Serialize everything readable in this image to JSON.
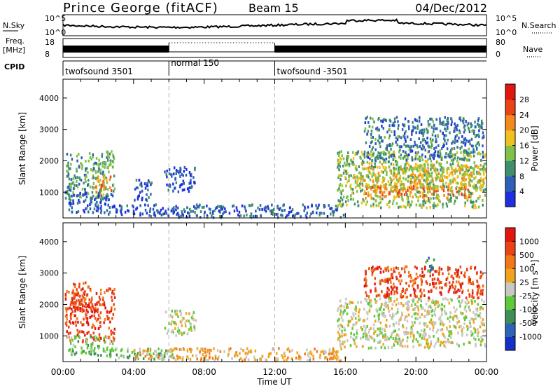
{
  "header": {
    "station": "Prince George (fitACF)",
    "beam": "Beam 15",
    "date": "04/Dec/2012"
  },
  "noise_panel": {
    "left_label": "N.Sky",
    "right_label": "N.Search",
    "left_ticks": [
      "10^5",
      "10^0"
    ],
    "right_ticks": [
      "10^5",
      "10^0"
    ]
  },
  "freq_panel": {
    "left_label_line1": "Freq.",
    "left_label_line2": "[MHz]",
    "right_label": "Nave",
    "left_ticks": [
      "18",
      "8"
    ],
    "right_ticks": [
      "80",
      "0"
    ]
  },
  "cpid": {
    "label": "CPID",
    "segments": [
      {
        "name": "twofsound 3501",
        "start_hour": 0,
        "end_hour": 6
      },
      {
        "name": "normal 150",
        "start_hour": 6,
        "end_hour": 12
      },
      {
        "name": "twofsound -3501",
        "start_hour": 12,
        "end_hour": 24
      }
    ]
  },
  "chart_data": [
    {
      "type": "heatmap",
      "parameter": "Power",
      "ylabel": "Slant Range [km]",
      "ylim": [
        180,
        4600
      ],
      "yticks": [
        "1000",
        "2000",
        "3000",
        "4000"
      ],
      "xlim": [
        0,
        24
      ],
      "colorbar_label": "Power [dB]",
      "colorbar_ticks": [
        "4",
        "8",
        "12",
        "16",
        "20",
        "24",
        "28"
      ],
      "colorbar_range": [
        0,
        32
      ],
      "colorbar_colors": [
        "#1f2fe0",
        "#2e5fb8",
        "#3f8f6e",
        "#7fc14a",
        "#f0c020",
        "#f28a1e",
        "#ea4316",
        "#e0160f"
      ],
      "regions": [
        {
          "t": [
            0.1,
            2.9
          ],
          "r": [
            800,
            2300
          ],
          "level": 11
        },
        {
          "t": [
            0.2,
            2.8
          ],
          "r": [
            350,
            1000
          ],
          "level": 5
        },
        {
          "t": [
            1.8,
            2.7
          ],
          "r": [
            900,
            1500
          ],
          "level": 22
        },
        {
          "t": [
            2.5,
            6.2
          ],
          "r": [
            250,
            600
          ],
          "level": 4
        },
        {
          "t": [
            4.0,
            5.0
          ],
          "r": [
            700,
            1400
          ],
          "level": 6
        },
        {
          "t": [
            5.7,
            7.5
          ],
          "r": [
            1000,
            1800
          ],
          "level": 4
        },
        {
          "t": [
            6.0,
            16.0
          ],
          "r": [
            190,
            600
          ],
          "level": 6
        },
        {
          "t": [
            15.5,
            23.9
          ],
          "r": [
            500,
            2300
          ],
          "level": 14
        },
        {
          "t": [
            17.0,
            23.0
          ],
          "r": [
            800,
            1200
          ],
          "level": 23
        },
        {
          "t": [
            17.0,
            23.8
          ],
          "r": [
            2000,
            3400
          ],
          "level": 8
        },
        {
          "t": [
            16.5,
            23.8
          ],
          "r": [
            1100,
            1900
          ],
          "level": 18
        }
      ]
    },
    {
      "type": "heatmap",
      "parameter": "Velocity",
      "ylabel": "Slant Range [km]",
      "ylim": [
        180,
        4600
      ],
      "yticks": [
        "1000",
        "2000",
        "3000",
        "4000"
      ],
      "xlim": [
        0,
        24
      ],
      "xticks": [
        "00:00",
        "04:00",
        "08:00",
        "12:00",
        "16:00",
        "20:00",
        "00:00"
      ],
      "xlabel": "Time UT",
      "colorbar_label": "Velocity [m s⁻¹]",
      "colorbar_ticks": [
        "1000",
        "500",
        "100",
        "25",
        "-25",
        "-100",
        "-500",
        "-1000"
      ],
      "colorbar_colors": [
        "#1530c8",
        "#2e63b5",
        "#3e8f55",
        "#5ec93a",
        "#c8c8c0",
        "#f0a41e",
        "#f07818",
        "#ea4316",
        "#e0160f"
      ],
      "regions": [
        {
          "t": [
            0.1,
            2.9
          ],
          "r": [
            800,
            2500
          ],
          "level": 7
        },
        {
          "t": [
            0.2,
            2.8
          ],
          "r": [
            350,
            1000
          ],
          "level": 3
        },
        {
          "t": [
            0.5,
            1.5
          ],
          "r": [
            1800,
            2700
          ],
          "level": 7
        },
        {
          "t": [
            2.5,
            6.2
          ],
          "r": [
            250,
            600
          ],
          "level": 3
        },
        {
          "t": [
            4.0,
            6.0
          ],
          "r": [
            250,
            550
          ],
          "level": 5
        },
        {
          "t": [
            5.7,
            7.5
          ],
          "r": [
            1000,
            1800
          ],
          "level": 4
        },
        {
          "t": [
            6.0,
            16.0
          ],
          "r": [
            190,
            600
          ],
          "level": 5
        },
        {
          "t": [
            15.5,
            23.9
          ],
          "r": [
            600,
            2200
          ],
          "level": 4
        },
        {
          "t": [
            17.0,
            23.8
          ],
          "r": [
            2200,
            3200
          ],
          "level": 7
        },
        {
          "t": [
            20.5,
            21.0
          ],
          "r": [
            3000,
            3500
          ],
          "level": 2
        }
      ]
    }
  ],
  "colors": {
    "frame": "#000000",
    "guide_line": "#b4b4b4"
  }
}
